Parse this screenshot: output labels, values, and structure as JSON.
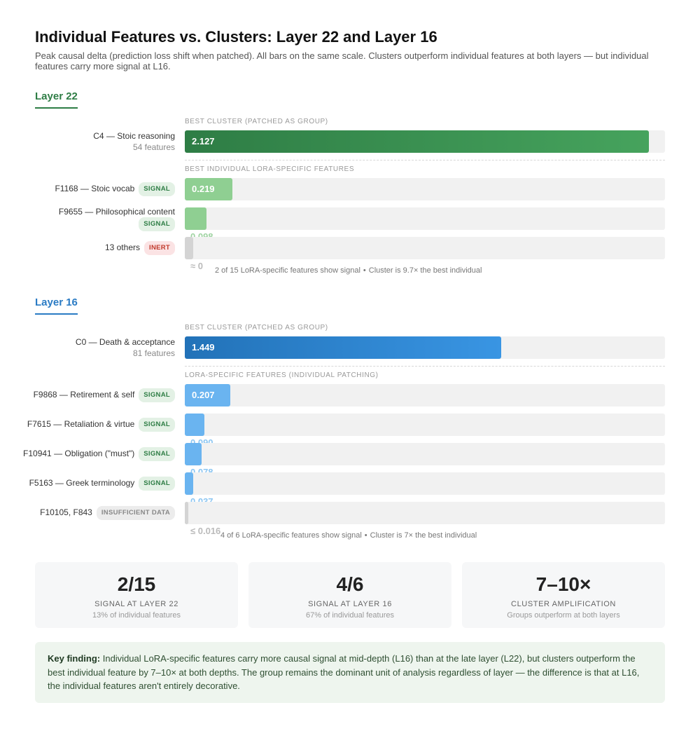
{
  "header": {
    "title": "Individual Features vs. Clusters: Layer 22 and Layer 16",
    "subtitle": "Peak causal delta (prediction loss shift when patched). All bars on the same scale. Clusters outperform individual features at both layers — but individual features carry more signal at L16."
  },
  "chart_data": [
    {
      "type": "bar",
      "orientation": "horizontal",
      "title": "Layer 22",
      "xlim": [
        0,
        2.2
      ],
      "cluster_group_label": "Best cluster (patched as group)",
      "individual_group_label": "Best individual LoRA-specific features",
      "categories": [
        "C4 — Stoic reasoning",
        "F1168 — Stoic vocab",
        "F9655 — Philosophical content",
        "13 others"
      ],
      "values": [
        2.127,
        0.219,
        0.098,
        0.04
      ],
      "value_labels": [
        "2.127",
        "0.219",
        "0.098",
        "≈ 0"
      ],
      "subtitles": [
        "54 features",
        "",
        "",
        ""
      ],
      "tags": [
        "",
        "SIGNAL",
        "SIGNAL",
        "INERT"
      ],
      "footnote_left": "2 of 15 LoRA-specific features show signal",
      "footnote_right": "Cluster is 9.7× the best individual"
    },
    {
      "type": "bar",
      "orientation": "horizontal",
      "title": "Layer 16",
      "xlim": [
        0,
        2.2
      ],
      "cluster_group_label": "Best cluster (patched as group)",
      "individual_group_label": "LoRA-specific features (individual patching)",
      "categories": [
        "C0 — Death & acceptance",
        "F9868 — Retirement & self",
        "F7615 — Retaliation & virtue",
        "F10941 — Obligation (\"must\")",
        "F5163 — Greek terminology",
        "F10105, F843"
      ],
      "values": [
        1.449,
        0.207,
        0.09,
        0.078,
        0.037,
        0.016
      ],
      "value_labels": [
        "1.449",
        "0.207",
        "0.090",
        "0.078",
        "0.037",
        "≤ 0.016"
      ],
      "subtitles": [
        "81 features",
        "",
        "",
        "",
        "",
        ""
      ],
      "tags": [
        "",
        "SIGNAL",
        "SIGNAL",
        "SIGNAL",
        "SIGNAL",
        "INSUFFICIENT DATA"
      ],
      "footnote_left": "4 of 6 LoRA-specific features show signal",
      "footnote_right": "Cluster is 7× the best individual"
    }
  ],
  "stats": [
    {
      "value": "2/15",
      "label": "Signal at Layer 22",
      "sub": "13% of individual features"
    },
    {
      "value": "4/6",
      "label": "Signal at Layer 16",
      "sub": "67% of individual features"
    },
    {
      "value": "7–10×",
      "label": "Cluster amplification",
      "sub": "Groups outperform at both layers"
    }
  ],
  "finding": {
    "lead": "Key finding:",
    "text": " Individual LoRA-specific features carry more causal signal at mid-depth (L16) than at the late layer (L22), but clusters outperform the best individual feature by 7–10× at both depths. The group remains the dominant unit of analysis regardless of layer — the difference is that at L16, the individual features aren't entirely decorative."
  },
  "colors": {
    "green_dark": "#2e7d45",
    "green_light": "#8fcf92",
    "blue_dark": "#2272b8",
    "blue_light": "#6ab4f0",
    "grey": "#d4d4d4"
  }
}
